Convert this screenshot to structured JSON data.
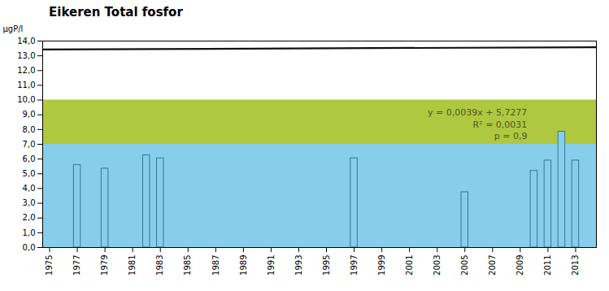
{
  "chart_data": {
    "type": "bar",
    "title": "Eikeren Total fosfor",
    "ylabel": "μgP/l",
    "x": [
      1977,
      1979,
      1982,
      1983,
      1997,
      2005,
      2010,
      2011,
      2012,
      2013
    ],
    "values": [
      5.6,
      5.35,
      6.25,
      6.05,
      6.05,
      3.75,
      5.2,
      5.9,
      7.85,
      5.9
    ],
    "color": "#87ceeb",
    "edge_color": "#2e6e8e",
    "xlim": [
      1974.5,
      2014.5
    ],
    "xticks": [
      1975,
      1977,
      1979,
      1981,
      1983,
      1985,
      1987,
      1989,
      1991,
      1993,
      1995,
      1997,
      1999,
      2001,
      2003,
      2005,
      2007,
      2009,
      2011,
      2013
    ],
    "ylim": [
      0,
      14
    ],
    "yticks": [
      {
        "value": 0,
        "label": "0,0"
      },
      {
        "value": 1,
        "label": "1,0"
      },
      {
        "value": 2,
        "label": "2,0"
      },
      {
        "value": 3,
        "label": "3,0"
      },
      {
        "value": 4,
        "label": "4,0"
      },
      {
        "value": 5,
        "label": "5,0"
      },
      {
        "value": 6,
        "label": "6,0"
      },
      {
        "value": 7,
        "label": "7,0"
      },
      {
        "value": 8,
        "label": "8,0"
      },
      {
        "value": 9,
        "label": "9,0"
      },
      {
        "value": 10,
        "label": "10,0"
      },
      {
        "value": 11,
        "label": "11,0"
      },
      {
        "value": 12,
        "label": "12,0"
      },
      {
        "value": 13,
        "label": "13,0"
      },
      {
        "value": 14,
        "label": "14,0"
      }
    ],
    "bands": [
      {
        "y0": 7,
        "y1": 10,
        "color": "#afc840"
      },
      {
        "y0": 0,
        "y1": 7,
        "color": "#87ceeb"
      }
    ],
    "trend_line": {
      "x": [
        1974.5,
        2014.5
      ],
      "y": [
        13.42825,
        13.58425
      ],
      "color": "#111111"
    },
    "annotations": [
      {
        "text": "y = 0,0039x + 5,7277\nR² = 0,0031\np = 0,9",
        "x": 2009.5,
        "y": 9.5,
        "color": "#555522"
      }
    ],
    "grid": false
  }
}
